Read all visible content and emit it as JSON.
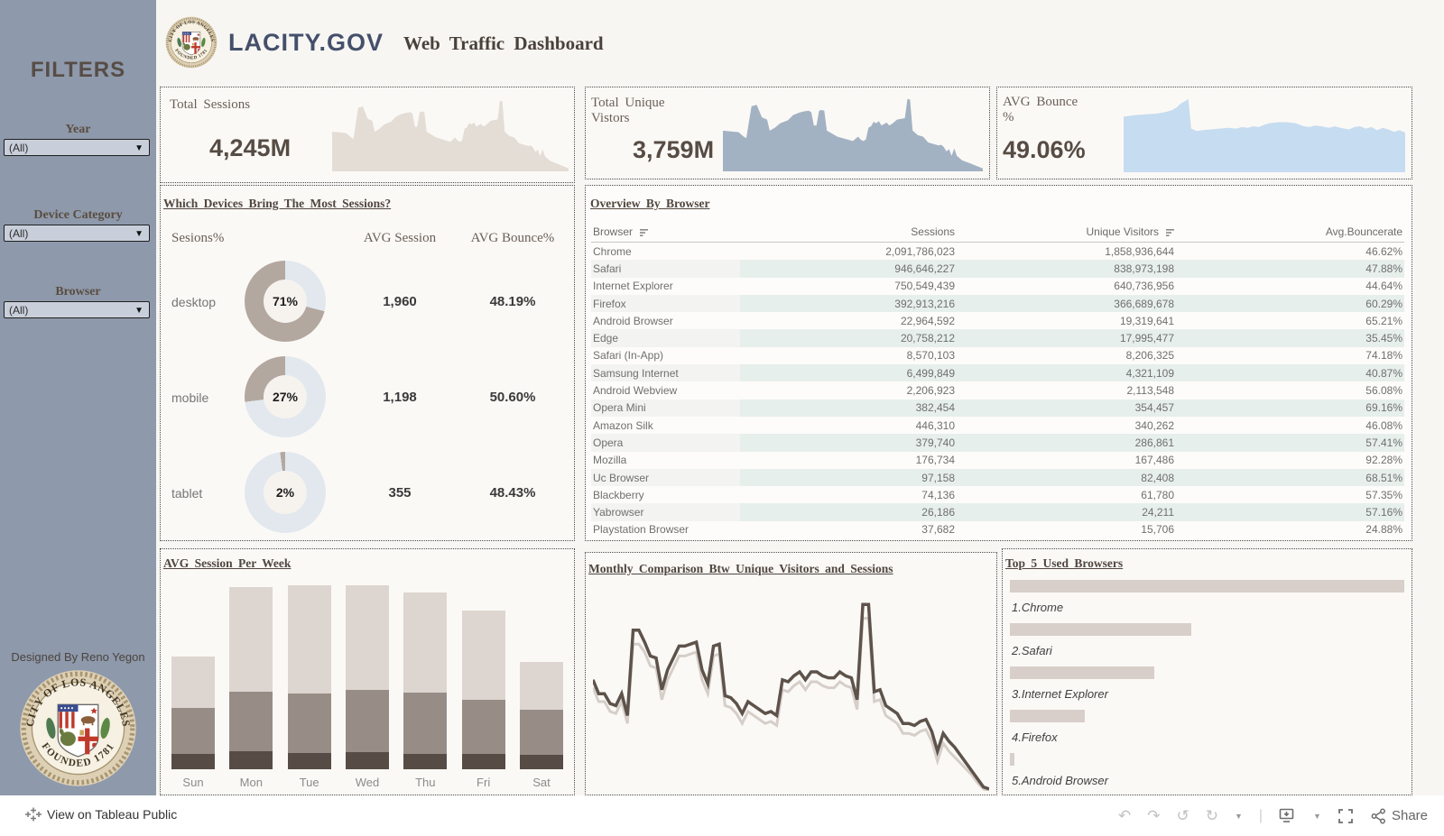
{
  "header": {
    "brand": "LACITY.GOV",
    "title": "Web Traffic Dashboard"
  },
  "sidebar": {
    "title": "FILTERS",
    "filters": [
      {
        "label": "Year",
        "value": "(All)"
      },
      {
        "label": "Device Category",
        "value": "(All)"
      },
      {
        "label": "Browser",
        "value": "(All)"
      }
    ],
    "credit": "Designed By Reno Yegon",
    "seal": {
      "top": "CITY OF LOS ANGELES",
      "bottom": "FOUNDED 1781"
    }
  },
  "kpis": [
    {
      "label": "Total Sessions",
      "value": "4,245M"
    },
    {
      "label": "Total Unique Vistors",
      "value": "3,759M"
    },
    {
      "label": "AVG Bounce %",
      "value": "49.06%"
    }
  ],
  "devices_panel": {
    "title": "Which Devices Bring The Most Sessions?",
    "col_headers": [
      "Sesions%",
      "AVG Session",
      "AVG Bounce%"
    ]
  },
  "browser_panel": {
    "title": "Overview By Browser"
  },
  "weekly_panel": {
    "title": "AVG Session Per Week"
  },
  "monthly_panel": {
    "title": "Monthly Comparison Btw Unique Visitors and Sessions"
  },
  "top5_panel": {
    "title": "Top 5 Used Browsers"
  },
  "toolbar": {
    "attribution": "View on Tableau Public",
    "share_label": "Share"
  },
  "colors": {
    "sidebar": "#8e99ab",
    "donut_filled": "#b3a8a0",
    "donut_rest": "#e2e8ee",
    "spark_sessions": "#e4ddd6",
    "spark_visitors": "#a3b2c3",
    "spark_bounce": "#c6dcf0",
    "bar_dark": "#564c45",
    "bar_mid": "#978d86",
    "bar_light": "#ddd5cf",
    "line_dark": "#5d534b",
    "line_light": "#d6cec8",
    "top5_bar": "#d8cfca"
  },
  "chart_data": [
    {
      "id": "sessions_spark",
      "type": "area",
      "title": "Total Sessions trend",
      "color": "#e4ddd6",
      "points": [
        [
          0,
          45
        ],
        [
          3,
          46
        ],
        [
          6,
          47
        ],
        [
          8,
          53
        ],
        [
          9,
          55
        ],
        [
          11,
          12
        ],
        [
          13,
          10
        ],
        [
          15,
          27
        ],
        [
          17,
          30
        ],
        [
          18,
          45
        ],
        [
          20,
          41
        ],
        [
          22,
          35
        ],
        [
          25,
          31
        ],
        [
          27,
          24
        ],
        [
          29,
          21
        ],
        [
          31,
          19
        ],
        [
          33,
          18
        ],
        [
          34,
          20
        ],
        [
          35,
          38
        ],
        [
          36,
          38
        ],
        [
          37,
          18
        ],
        [
          38,
          17
        ],
        [
          39,
          18
        ],
        [
          40,
          45
        ],
        [
          42,
          49
        ],
        [
          44,
          53
        ],
        [
          46,
          55
        ],
        [
          48,
          57
        ],
        [
          50,
          59
        ],
        [
          52,
          53
        ],
        [
          53,
          57
        ],
        [
          54,
          59
        ],
        [
          55,
          57
        ],
        [
          56,
          41
        ],
        [
          57,
          39
        ],
        [
          58,
          33
        ],
        [
          59,
          35
        ],
        [
          60,
          32
        ],
        [
          61,
          38
        ],
        [
          62,
          36
        ],
        [
          63,
          34
        ],
        [
          64,
          38
        ],
        [
          65,
          36
        ],
        [
          67,
          30
        ],
        [
          70,
          28
        ],
        [
          71,
          2
        ],
        [
          72,
          3
        ],
        [
          73,
          45
        ],
        [
          75,
          51
        ],
        [
          77,
          53
        ],
        [
          79,
          61
        ],
        [
          81,
          63
        ],
        [
          83,
          65
        ],
        [
          84,
          64
        ],
        [
          85,
          67
        ],
        [
          86,
          73
        ],
        [
          87,
          70
        ],
        [
          88,
          79
        ],
        [
          89,
          69
        ],
        [
          90,
          79
        ],
        [
          92,
          85
        ],
        [
          95,
          89
        ],
        [
          100,
          96
        ]
      ]
    },
    {
      "id": "visitors_spark",
      "type": "area",
      "title": "Total Unique Vistors trend",
      "color": "#a3b2c3",
      "points": [
        [
          0,
          45
        ],
        [
          3,
          46
        ],
        [
          6,
          47
        ],
        [
          8,
          53
        ],
        [
          9,
          55
        ],
        [
          11,
          12
        ],
        [
          13,
          10
        ],
        [
          15,
          27
        ],
        [
          17,
          30
        ],
        [
          18,
          45
        ],
        [
          20,
          41
        ],
        [
          22,
          35
        ],
        [
          25,
          31
        ],
        [
          27,
          24
        ],
        [
          29,
          21
        ],
        [
          31,
          19
        ],
        [
          33,
          18
        ],
        [
          34,
          20
        ],
        [
          35,
          38
        ],
        [
          36,
          38
        ],
        [
          37,
          18
        ],
        [
          38,
          17
        ],
        [
          39,
          18
        ],
        [
          40,
          45
        ],
        [
          42,
          49
        ],
        [
          44,
          53
        ],
        [
          46,
          55
        ],
        [
          48,
          57
        ],
        [
          50,
          59
        ],
        [
          52,
          53
        ],
        [
          53,
          57
        ],
        [
          54,
          59
        ],
        [
          55,
          57
        ],
        [
          56,
          41
        ],
        [
          57,
          39
        ],
        [
          58,
          33
        ],
        [
          59,
          35
        ],
        [
          60,
          32
        ],
        [
          61,
          38
        ],
        [
          62,
          36
        ],
        [
          63,
          34
        ],
        [
          64,
          38
        ],
        [
          65,
          36
        ],
        [
          67,
          30
        ],
        [
          70,
          28
        ],
        [
          71,
          2
        ],
        [
          72,
          3
        ],
        [
          73,
          45
        ],
        [
          75,
          51
        ],
        [
          77,
          53
        ],
        [
          79,
          61
        ],
        [
          81,
          63
        ],
        [
          83,
          65
        ],
        [
          84,
          64
        ],
        [
          85,
          67
        ],
        [
          86,
          73
        ],
        [
          87,
          70
        ],
        [
          88,
          79
        ],
        [
          89,
          69
        ],
        [
          90,
          79
        ],
        [
          92,
          85
        ],
        [
          95,
          89
        ],
        [
          100,
          96
        ]
      ]
    },
    {
      "id": "bounce_spark",
      "type": "area",
      "title": "AVG Bounce % trend",
      "color": "#c6dcf0",
      "points": [
        [
          0,
          30
        ],
        [
          4,
          28
        ],
        [
          8,
          27
        ],
        [
          12,
          26
        ],
        [
          15,
          24
        ],
        [
          17,
          22
        ],
        [
          19,
          18
        ],
        [
          20,
          14
        ],
        [
          22,
          10
        ],
        [
          23,
          8
        ],
        [
          24,
          45
        ],
        [
          26,
          48
        ],
        [
          28,
          47
        ],
        [
          31,
          46
        ],
        [
          34,
          45
        ],
        [
          37,
          44
        ],
        [
          40,
          45
        ],
        [
          42,
          43
        ],
        [
          44,
          44
        ],
        [
          46,
          42
        ],
        [
          48,
          43
        ],
        [
          50,
          40
        ],
        [
          52,
          38
        ],
        [
          55,
          37
        ],
        [
          58,
          37
        ],
        [
          61,
          38
        ],
        [
          64,
          42
        ],
        [
          66,
          43
        ],
        [
          68,
          41
        ],
        [
          70,
          42
        ],
        [
          73,
          44
        ],
        [
          75,
          42
        ],
        [
          77,
          44
        ],
        [
          80,
          46
        ],
        [
          82,
          43
        ],
        [
          84,
          42
        ],
        [
          86,
          45
        ],
        [
          88,
          43
        ],
        [
          90,
          47
        ],
        [
          92,
          44
        ],
        [
          94,
          46
        ],
        [
          96,
          49
        ],
        [
          98,
          47
        ],
        [
          100,
          50
        ]
      ]
    },
    {
      "id": "device_donuts",
      "type": "pie",
      "rows": [
        {
          "label": "desktop",
          "sessions_pct": 71,
          "avg_session": "1,960",
          "avg_bounce": "48.19%"
        },
        {
          "label": "mobile",
          "sessions_pct": 27,
          "avg_session": "1,198",
          "avg_bounce": "50.60%"
        },
        {
          "label": "tablet",
          "sessions_pct": 2,
          "avg_session": "355",
          "avg_bounce": "48.43%"
        }
      ]
    },
    {
      "id": "browser_table",
      "type": "table",
      "columns": [
        "Browser",
        "Sessions",
        "Unique Visitors",
        "Avg.Bouncerate"
      ],
      "rows": [
        [
          "Chrome",
          "2,091,786,023",
          "1,858,936,644",
          "46.62%"
        ],
        [
          "Safari",
          "946,646,227",
          "838,973,198",
          "47.88%"
        ],
        [
          "Internet Explorer",
          "750,549,439",
          "640,736,956",
          "44.64%"
        ],
        [
          "Firefox",
          "392,913,216",
          "366,689,678",
          "60.29%"
        ],
        [
          "Android Browser",
          "22,964,592",
          "19,319,641",
          "65.21%"
        ],
        [
          "Edge",
          "20,758,212",
          "17,995,477",
          "35.45%"
        ],
        [
          "Safari (In-App)",
          "8,570,103",
          "8,206,325",
          "74.18%"
        ],
        [
          "Samsung Internet",
          "6,499,849",
          "4,321,109",
          "40.87%"
        ],
        [
          "Android Webview",
          "2,206,923",
          "2,113,548",
          "56.08%"
        ],
        [
          "Opera Mini",
          "382,454",
          "354,457",
          "69.16%"
        ],
        [
          "Amazon Silk",
          "446,310",
          "340,262",
          "46.08%"
        ],
        [
          "Opera",
          "379,740",
          "286,861",
          "57.41%"
        ],
        [
          "Mozilla",
          "176,734",
          "167,486",
          "92.28%"
        ],
        [
          "Uc Browser",
          "97,158",
          "82,408",
          "68.51%"
        ],
        [
          "Blackberry",
          "74,136",
          "61,780",
          "57.35%"
        ],
        [
          "Yabrowser",
          "26,186",
          "24,211",
          "57.16%"
        ],
        [
          "Playstation Browser",
          "37,682",
          "15,706",
          "24.88%"
        ]
      ]
    },
    {
      "id": "weekly_sessions",
      "type": "bar",
      "stacked": true,
      "categories": [
        "Sun",
        "Mon",
        "Tue",
        "Wed",
        "Thu",
        "Fri",
        "Sat"
      ],
      "series": [
        {
          "name": "segment-dark",
          "color": "#564c45",
          "values": [
            18,
            21,
            19,
            21,
            18,
            18,
            17
          ]
        },
        {
          "name": "segment-mid",
          "color": "#978d86",
          "values": [
            54,
            70,
            70,
            74,
            71,
            63,
            53
          ]
        },
        {
          "name": "segment-light",
          "color": "#ddd5cf",
          "values": [
            60,
            122,
            128,
            125,
            117,
            104,
            55
          ]
        }
      ],
      "unit": "relative height (no axis labels shown)"
    },
    {
      "id": "monthly_comparison",
      "type": "line",
      "x_unit": "time (no axis labels shown)",
      "y_unit": "relative position % from top",
      "series": [
        {
          "name": "Sessions",
          "color": "#5d534b",
          "y": [
            44,
            51,
            51,
            56,
            57,
            51,
            62,
            19,
            19,
            25,
            32,
            33,
            49,
            39,
            33,
            27,
            27,
            26,
            25,
            39,
            46,
            27,
            26,
            52,
            53,
            56,
            61,
            55,
            57,
            59,
            61,
            60,
            62,
            44,
            45,
            42,
            40,
            44,
            40,
            40,
            42,
            43,
            43,
            40,
            42,
            43,
            54,
            6,
            6,
            50,
            49,
            57,
            59,
            61,
            66,
            66,
            67,
            65,
            64,
            70,
            80,
            71,
            75,
            78,
            82,
            86,
            90,
            94,
            98,
            99
          ]
        },
        {
          "name": "Unique Visitors",
          "color": "#d6cec8",
          "y": [
            48,
            55,
            55,
            60,
            61,
            55,
            66,
            26,
            26,
            30,
            37,
            38,
            54,
            44,
            38,
            32,
            32,
            31,
            30,
            44,
            51,
            32,
            31,
            57,
            58,
            61,
            66,
            60,
            62,
            64,
            66,
            65,
            67,
            49,
            50,
            47,
            45,
            49,
            45,
            45,
            47,
            48,
            48,
            45,
            47,
            48,
            59,
            13,
            13,
            55,
            54,
            62,
            64,
            66,
            71,
            71,
            72,
            70,
            69,
            75,
            85,
            76,
            80,
            83,
            86,
            89,
            92,
            96,
            99,
            100
          ]
        }
      ]
    },
    {
      "id": "top5_browsers",
      "type": "bar",
      "orientation": "horizontal",
      "categories": [
        "1.Chrome",
        "2.Safari",
        "3.Internet Explorer",
        "4.Firefox",
        "5.Android Browser"
      ],
      "values_pct": [
        100,
        46,
        36.5,
        19,
        1.2
      ]
    }
  ]
}
